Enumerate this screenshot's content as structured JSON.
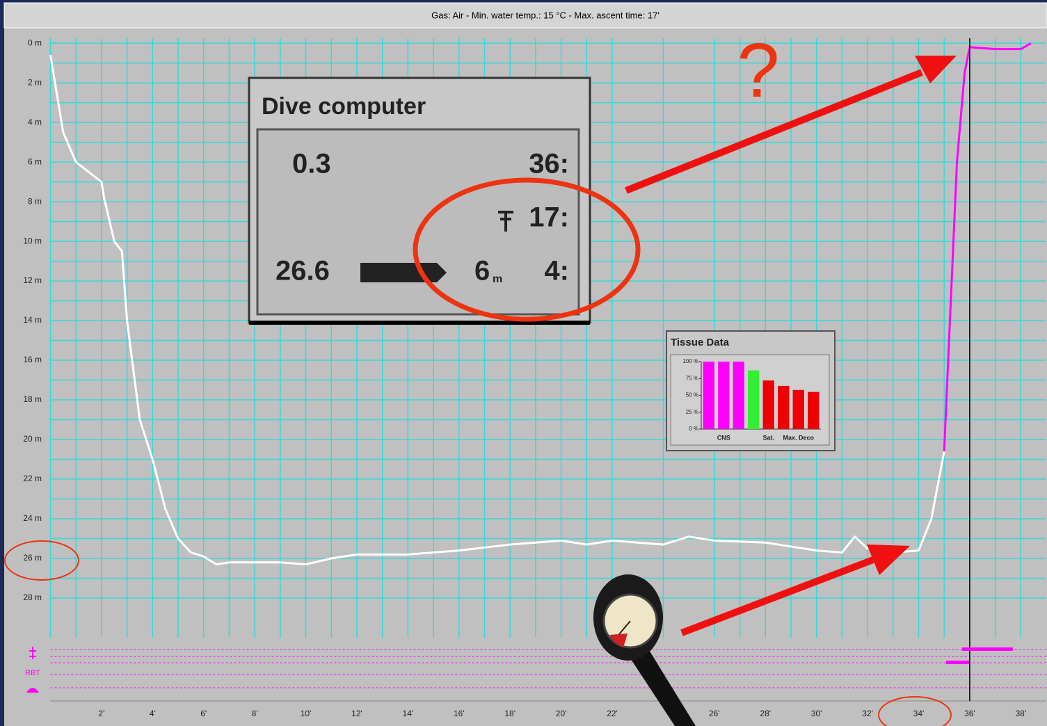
{
  "chart_data": [
    {
      "type": "line",
      "title": "Gas: Air  -  Min. water temp.: 15 °C  -  Max. ascent time: 17'",
      "x": [
        0,
        0.5,
        1,
        2,
        2.1,
        2.5,
        2.8,
        3,
        3.2,
        3.5,
        4,
        4.5,
        5,
        5.5,
        6,
        6.5,
        7,
        8,
        9,
        10,
        11,
        12,
        14,
        16,
        18,
        20,
        21,
        22,
        24,
        25,
        26,
        28,
        30,
        31,
        31.5,
        32,
        33,
        34,
        34.5,
        35,
        35.5,
        35.8,
        36,
        37,
        38,
        38.4
      ],
      "series": [
        {
          "color": "#ffffff",
          "values": [
            0.6,
            4.5,
            6,
            7,
            7.8,
            10,
            10.5,
            14,
            16,
            19,
            21,
            23.5,
            25,
            25.7,
            25.9,
            26.3,
            26.2,
            26.2,
            26.2,
            26.3,
            26,
            25.8,
            25.8,
            25.6,
            25.3,
            25.1,
            25.3,
            25.1,
            25.3,
            24.9,
            25.1,
            25.2,
            25.6,
            25.7,
            24.9,
            25.5,
            25.7,
            25.6,
            24,
            20.6,
            null,
            null,
            null,
            null,
            null,
            null
          ]
        },
        {
          "color": "#ff00ff",
          "values": [
            null,
            null,
            null,
            null,
            null,
            null,
            null,
            null,
            null,
            null,
            null,
            null,
            null,
            null,
            null,
            null,
            null,
            null,
            null,
            null,
            null,
            null,
            null,
            null,
            null,
            null,
            null,
            null,
            null,
            null,
            null,
            null,
            null,
            null,
            null,
            null,
            null,
            null,
            null,
            20.6,
            6,
            1.5,
            0.2,
            0.3,
            0.3,
            0
          ]
        }
      ],
      "xlim": [
        0,
        39
      ],
      "ylim": [
        -0.25,
        30
      ],
      "y_inverted": true,
      "grid": true,
      "grid_color": "#38d8d8",
      "xticks": [
        {
          "value": 2,
          "label": "2'"
        },
        {
          "value": 4,
          "label": "4'"
        },
        {
          "value": 6,
          "label": "6'"
        },
        {
          "value": 8,
          "label": "8'"
        },
        {
          "value": 10,
          "label": "10'"
        },
        {
          "value": 12,
          "label": "12'"
        },
        {
          "value": 14,
          "label": "14'"
        },
        {
          "value": 16,
          "label": "16'"
        },
        {
          "value": 18,
          "label": "18'"
        },
        {
          "value": 20,
          "label": "20'"
        },
        {
          "value": 22,
          "label": "22'"
        },
        {
          "value": 26,
          "label": "26'"
        },
        {
          "value": 28,
          "label": "28'"
        },
        {
          "value": 30,
          "label": "30'"
        },
        {
          "value": 32,
          "label": "32'"
        },
        {
          "value": 34,
          "label": "34'"
        },
        {
          "value": 36,
          "label": "36'"
        },
        {
          "value": 38,
          "label": "38'"
        }
      ],
      "yticks": [
        {
          "value": 0,
          "label": "0 m"
        },
        {
          "value": 2,
          "label": "2 m"
        },
        {
          "value": 4,
          "label": "4 m"
        },
        {
          "value": 6,
          "label": "6 m"
        },
        {
          "value": 8,
          "label": "8 m"
        },
        {
          "value": 10,
          "label": "10 m"
        },
        {
          "value": 12,
          "label": "12 m"
        },
        {
          "value": 14,
          "label": "14 m"
        },
        {
          "value": 16,
          "label": "16 m"
        },
        {
          "value": 18,
          "label": "18 m"
        },
        {
          "value": 20,
          "label": "20 m"
        },
        {
          "value": 22,
          "label": "22 m"
        },
        {
          "value": 24,
          "label": "24 m"
        },
        {
          "value": 26,
          "label": "26 m"
        },
        {
          "value": 28,
          "label": "28 m"
        }
      ],
      "cursor_x": 36,
      "annotation": "?",
      "strip_label": "RBT"
    },
    {
      "type": "bar",
      "title": "Tissue Data",
      "categories": [
        null,
        "CNS",
        null,
        null,
        "Sat.",
        null,
        "Max. Deco",
        null
      ],
      "values": [
        100,
        100,
        100,
        87,
        72,
        64,
        58,
        55
      ],
      "colors": [
        "#ff00ff",
        "#ff00ff",
        "#ff00ff",
        "#33ee33",
        "#ee0000",
        "#ee0000",
        "#ee0000",
        "#ee0000"
      ],
      "ylim": [
        0,
        100
      ],
      "yticks": [
        {
          "value": 0,
          "label": "0 %"
        },
        {
          "value": 25,
          "label": "25 %"
        },
        {
          "value": 50,
          "label": "50 %"
        },
        {
          "value": 75,
          "label": "75 %"
        },
        {
          "value": 100,
          "label": "100 %"
        }
      ]
    }
  ],
  "dive_computer": {
    "title": "Dive computer",
    "row1_left": "0.3",
    "row1_right": "36:",
    "row2_right": "17:",
    "row3_left": "26.6",
    "row3_depth": "6",
    "row3_unit": "m",
    "row3_right": "4:"
  }
}
